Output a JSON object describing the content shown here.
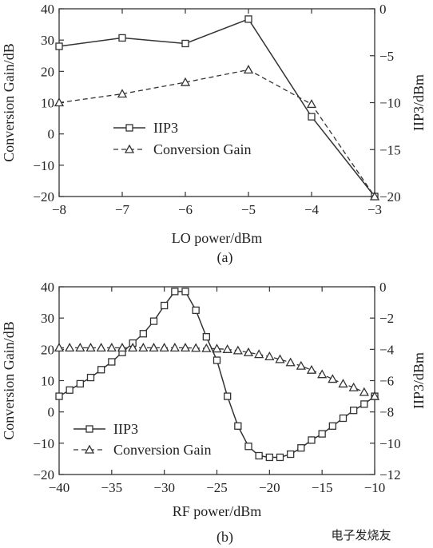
{
  "chart_data": [
    {
      "type": "line",
      "panel_label": "(a)",
      "xlabel": "LO power/dBm",
      "ylabel_left": "Conversion Gain/dB",
      "ylabel_right": "IIP3/dBm",
      "xlim": [
        -8,
        -3
      ],
      "ylim_left": [
        -20,
        40
      ],
      "ylim_right": [
        -20,
        0
      ],
      "xticks": [
        "−8",
        "−7",
        "−6",
        "−5",
        "−4",
        "−3"
      ],
      "yticks_left": [
        "−20",
        "−10",
        "0",
        "10",
        "20",
        "30",
        "40"
      ],
      "yticks_right": [
        "−20",
        "−15",
        "−10",
        "−5",
        "0"
      ],
      "legend_placement": "center-left",
      "series": [
        {
          "name": "IIP3",
          "axis": "right",
          "marker": "square",
          "line": "solid",
          "x": [
            -8,
            -7,
            -6,
            -5,
            -4,
            -3
          ],
          "y": [
            -4.0,
            -3.1,
            -3.7,
            -1.1,
            -11.5,
            -20.0
          ]
        },
        {
          "name": "Conversion Gain",
          "axis": "left",
          "marker": "triangle",
          "line": "dashed",
          "x": [
            -8,
            -7,
            -6,
            -5,
            -4,
            -3
          ],
          "y": [
            10.0,
            12.8,
            16.5,
            20.5,
            9.5,
            -20.0
          ]
        }
      ]
    },
    {
      "type": "line",
      "panel_label": "(b)",
      "xlabel": "RF power/dBm",
      "ylabel_left": "Conversion Gain/dB",
      "ylabel_right": "IIP3/dBm",
      "xlim": [
        -40,
        -10
      ],
      "ylim_left": [
        -20,
        40
      ],
      "ylim_right": [
        -12,
        0
      ],
      "xticks": [
        "−40",
        "−35",
        "−30",
        "−25",
        "−20",
        "−15",
        "−10"
      ],
      "yticks_left": [
        "−20",
        "−10",
        "0",
        "10",
        "20",
        "30",
        "40"
      ],
      "yticks_right": [
        "−12",
        "−10",
        "−8",
        "−6",
        "−4",
        "−2",
        "0"
      ],
      "legend_placement": "bottom-left",
      "series": [
        {
          "name": "IIP3",
          "axis": "right",
          "marker": "square",
          "line": "solid",
          "x": [
            -40,
            -39,
            -38,
            -37,
            -36,
            -35,
            -34,
            -33,
            -32,
            -31,
            -30,
            -29,
            -28,
            -27,
            -26,
            -25,
            -24,
            -23,
            -22,
            -21,
            -20,
            -19,
            -18,
            -17,
            -16,
            -15,
            -14,
            -13,
            -12,
            -11,
            -10
          ],
          "y": [
            -7.0,
            -6.6,
            -6.2,
            -5.8,
            -5.3,
            -4.8,
            -4.2,
            -3.6,
            -3.0,
            -2.2,
            -1.2,
            -0.3,
            -0.3,
            -1.5,
            -3.2,
            -4.7,
            -7.0,
            -8.9,
            -10.2,
            -10.8,
            -10.9,
            -10.9,
            -10.7,
            -10.3,
            -9.8,
            -9.4,
            -8.9,
            -8.4,
            -7.9,
            -7.5,
            -7.0
          ]
        },
        {
          "name": "Conversion Gain",
          "axis": "left",
          "marker": "triangle",
          "line": "dashed",
          "x": [
            -40,
            -39,
            -38,
            -37,
            -36,
            -35,
            -34,
            -33,
            -32,
            -31,
            -30,
            -29,
            -28,
            -27,
            -26,
            -25,
            -24,
            -23,
            -22,
            -21,
            -20,
            -19,
            -18,
            -17,
            -16,
            -15,
            -14,
            -13,
            -12,
            -11,
            -10
          ],
          "y": [
            20.5,
            20.5,
            20.5,
            20.5,
            20.5,
            20.5,
            20.5,
            20.5,
            20.5,
            20.5,
            20.5,
            20.5,
            20.5,
            20.4,
            20.3,
            20.2,
            20.0,
            19.6,
            19.0,
            18.4,
            17.7,
            16.8,
            15.8,
            14.7,
            13.4,
            12.0,
            10.5,
            9.0,
            7.8,
            6.3,
            5.0
          ]
        }
      ]
    }
  ],
  "watermark": "电子发烧友"
}
